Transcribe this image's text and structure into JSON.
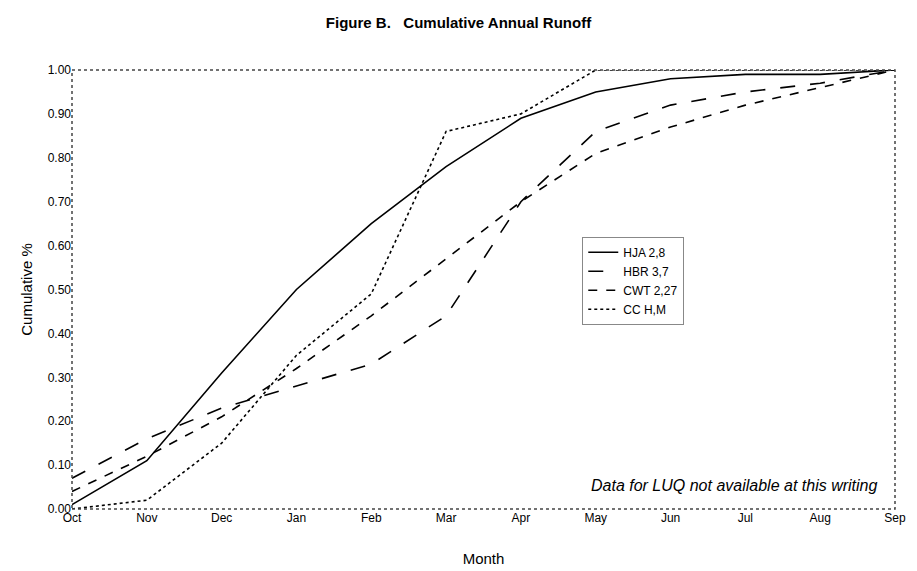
{
  "chart_data": {
    "type": "line",
    "title": "Figure B.   Cumulative Annual Runoff",
    "x_label": "Month",
    "y_label": "Cumulative %",
    "annotations": [
      "Data for LUQ not available at this writing"
    ],
    "categories": [
      "Oct",
      "Nov",
      "Dec",
      "Jan",
      "Feb",
      "Mar",
      "Apr",
      "May",
      "Jun",
      "Jul",
      "Aug",
      "Sep"
    ],
    "series": [
      {
        "name": "HJA 2,8",
        "color": "#000000",
        "line_style": "solid",
        "values": [
          0.01,
          0.11,
          0.31,
          0.5,
          0.65,
          0.78,
          0.89,
          0.95,
          0.98,
          0.99,
          0.99,
          1.0
        ]
      },
      {
        "name": "HBR 3,7",
        "color": "#000000",
        "line_style": "longdash",
        "values": [
          0.07,
          0.16,
          0.23,
          0.28,
          0.33,
          0.44,
          0.7,
          0.86,
          0.92,
          0.95,
          0.97,
          1.0
        ]
      },
      {
        "name": "CWT 2,27",
        "color": "#000000",
        "line_style": "dash",
        "values": [
          0.04,
          0.12,
          0.21,
          0.32,
          0.44,
          0.57,
          0.7,
          0.81,
          0.87,
          0.92,
          0.96,
          1.0
        ]
      },
      {
        "name": "CC H,M",
        "color": "#000000",
        "line_style": "dot",
        "values": [
          0.0,
          0.02,
          0.15,
          0.35,
          0.49,
          0.86,
          0.9,
          1.0,
          1.0,
          1.0,
          1.0,
          1.0
        ]
      }
    ],
    "ylim": [
      0,
      1
    ],
    "yticks": [
      {
        "value": 0,
        "label": "0.00"
      },
      {
        "value": 0.1,
        "label": "0.10"
      },
      {
        "value": 0.2,
        "label": "0.20"
      },
      {
        "value": 0.3,
        "label": "0.30"
      },
      {
        "value": 0.4,
        "label": "0.40"
      },
      {
        "value": 0.5,
        "label": "0.50"
      },
      {
        "value": 0.6,
        "label": "0.60"
      },
      {
        "value": 0.7,
        "label": "0.70"
      },
      {
        "value": 0.8,
        "label": "0.80"
      },
      {
        "value": 0.9,
        "label": "0.90"
      },
      {
        "value": 1,
        "label": "1.00"
      }
    ],
    "grid": false,
    "legend": "right"
  }
}
